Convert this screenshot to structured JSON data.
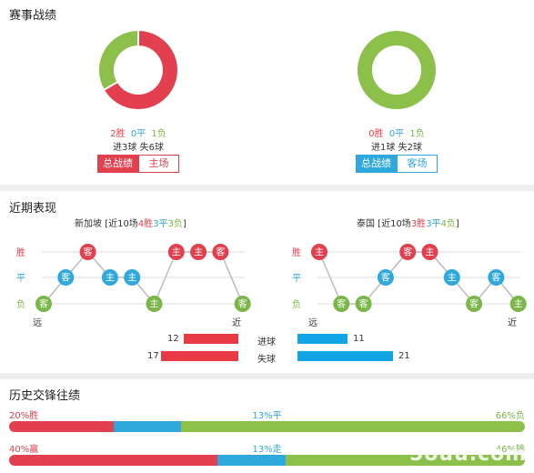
{
  "record": {
    "title": "赛事战绩",
    "left": {
      "wins": "2胜",
      "draws": "0平",
      "losses": "1负",
      "goals": "进3球 失6球",
      "tab_active": "总战绩",
      "tab_other": "主场",
      "donut": {
        "win": 2,
        "draw": 0,
        "loss": 1
      }
    },
    "right": {
      "wins": "0胜",
      "draws": "0平",
      "losses": "1负",
      "goals": "进1球 失2球",
      "tab_active": "总战绩",
      "tab_other": "客场",
      "donut": {
        "win": 0,
        "draw": 0,
        "loss": 1
      }
    }
  },
  "recent": {
    "title": "近期表现",
    "y_labels": [
      "胜",
      "平",
      "负"
    ],
    "far_label": "远",
    "near_label": "近",
    "left": {
      "team": "新加坡",
      "summary_pre": " [近10场",
      "w": "4胜",
      "d": "3平",
      "l": "3负",
      "summary_post": "]",
      "games": [
        {
          "r": "L",
          "t": "客"
        },
        {
          "r": "D",
          "t": "客"
        },
        {
          "r": "W",
          "t": "客"
        },
        {
          "r": "D",
          "t": "主"
        },
        {
          "r": "D",
          "t": "主"
        },
        {
          "r": "L",
          "t": "主"
        },
        {
          "r": "W",
          "t": "主"
        },
        {
          "r": "W",
          "t": "主"
        },
        {
          "r": "W",
          "t": "客"
        },
        {
          "r": "L",
          "t": "客"
        }
      ]
    },
    "right": {
      "team": "泰国",
      "summary_pre": " [近10场",
      "w": "3胜",
      "d": "3平",
      "l": "4负",
      "summary_post": "]",
      "games": [
        {
          "r": "W",
          "t": "主"
        },
        {
          "r": "L",
          "t": "客"
        },
        {
          "r": "L",
          "t": "客"
        },
        {
          "r": "D",
          "t": "客"
        },
        {
          "r": "W",
          "t": "客"
        },
        {
          "r": "W",
          "t": "主"
        },
        {
          "r": "D",
          "t": "主"
        },
        {
          "r": "L",
          "t": "客"
        },
        {
          "r": "D",
          "t": "客"
        },
        {
          "r": "L",
          "t": "主"
        }
      ]
    },
    "goals_for": {
      "label": "进球",
      "left": 12,
      "right": 11
    },
    "goals_against": {
      "label": "失球",
      "left": 17,
      "right": 21
    }
  },
  "history": {
    "title": "历史交锋往绩",
    "row1": {
      "a_label": "20%胜",
      "b_label": "13%平",
      "c_label": "66%负",
      "a": 20,
      "b": 13,
      "c": 66
    },
    "row2": {
      "a_label": "40%赢",
      "b_label": "13%走",
      "c_label": "46%输",
      "a": 40,
      "b": 13,
      "c": 46
    }
  },
  "watermark": "5ouu.com",
  "colors": {
    "win": "#e2404e",
    "draw": "#2fa8dc",
    "loss": "#7ab648",
    "active_left": "#e2404e",
    "active_right": "#2fa8dc"
  }
}
